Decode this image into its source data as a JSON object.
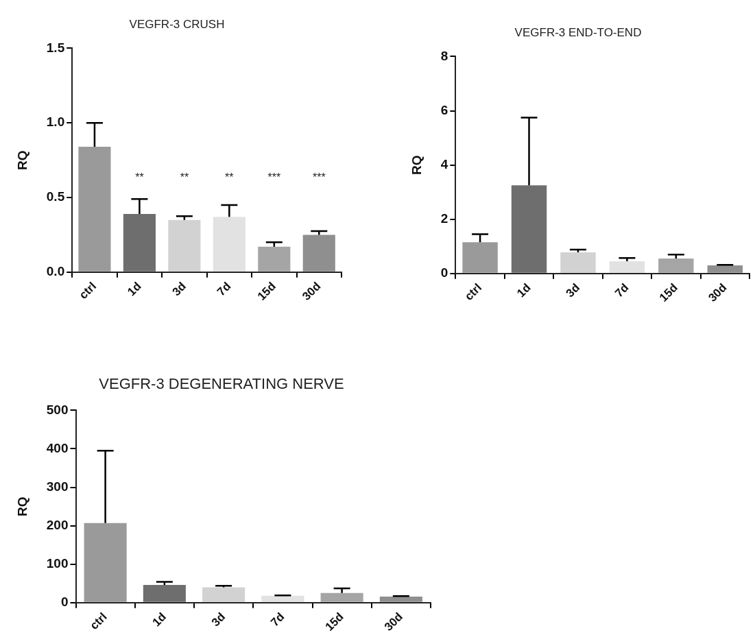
{
  "chart_data": [
    {
      "type": "bar",
      "title": "VEGFR-3 CRUSH",
      "ylabel": "RQ",
      "categories": [
        "ctrl",
        "1d",
        "3d",
        "7d",
        "15d",
        "30d"
      ],
      "values": [
        0.84,
        0.39,
        0.35,
        0.37,
        0.17,
        0.25
      ],
      "errors": [
        [
          0.84,
          1.0
        ],
        [
          0.39,
          0.49
        ],
        [
          0.35,
          0.375
        ],
        [
          0.37,
          0.45
        ],
        [
          0.17,
          0.2
        ],
        [
          0.25,
          0.275
        ]
      ],
      "colors": [
        "#9a9a9a",
        "#6e6e6e",
        "#d2d2d2",
        "#e2e2e2",
        "#a5a5a5",
        "#8f8f8f"
      ],
      "ylim": [
        0,
        1.5
      ],
      "yticks": [
        {
          "value": 0,
          "label": "0.0"
        },
        0.5,
        {
          "value": 1,
          "label": "1.0"
        },
        1.5
      ],
      "grid": false,
      "annotations": [
        "**",
        "**",
        "**",
        "***",
        "***"
      ]
    },
    {
      "type": "bar",
      "title": "VEGFR-3 END-TO-END",
      "ylabel": "RQ",
      "categories": [
        "ctrl",
        "1d",
        "3d",
        "7d",
        "15d",
        "30d"
      ],
      "values": [
        1.15,
        3.25,
        0.78,
        0.45,
        0.55,
        0.3
      ],
      "errors": [
        [
          1.15,
          1.45
        ],
        [
          3.25,
          5.75
        ],
        [
          0.78,
          0.88
        ],
        [
          0.45,
          0.57
        ],
        [
          0.55,
          0.7
        ],
        [
          0.3,
          0.32
        ]
      ],
      "colors": [
        "#9a9a9a",
        "#6e6e6e",
        "#d2d2d2",
        "#e2e2e2",
        "#a5a5a5",
        "#8f8f8f"
      ],
      "ylim": [
        0,
        8
      ],
      "yticks": [
        0,
        2,
        4,
        6,
        8
      ],
      "grid": false
    },
    {
      "type": "bar",
      "title": "VEGFR-3 DEGENERATING NERVE",
      "ylabel": "RQ",
      "categories": [
        "ctrl",
        "1d",
        "3d",
        "7d",
        "15d",
        "30d"
      ],
      "values": [
        207,
        46,
        40,
        18,
        25,
        16
      ],
      "errors": [
        [
          207,
          395
        ],
        [
          46,
          54
        ],
        [
          40,
          44
        ],
        [
          18,
          19
        ],
        [
          25,
          37
        ],
        [
          16,
          17
        ]
      ],
      "colors": [
        "#9a9a9a",
        "#6e6e6e",
        "#d2d2d2",
        "#e2e2e2",
        "#a5a5a5",
        "#8f8f8f"
      ],
      "ylim": [
        0,
        500
      ],
      "yticks": [
        0,
        100,
        200,
        300,
        400,
        500
      ],
      "grid": false
    }
  ]
}
